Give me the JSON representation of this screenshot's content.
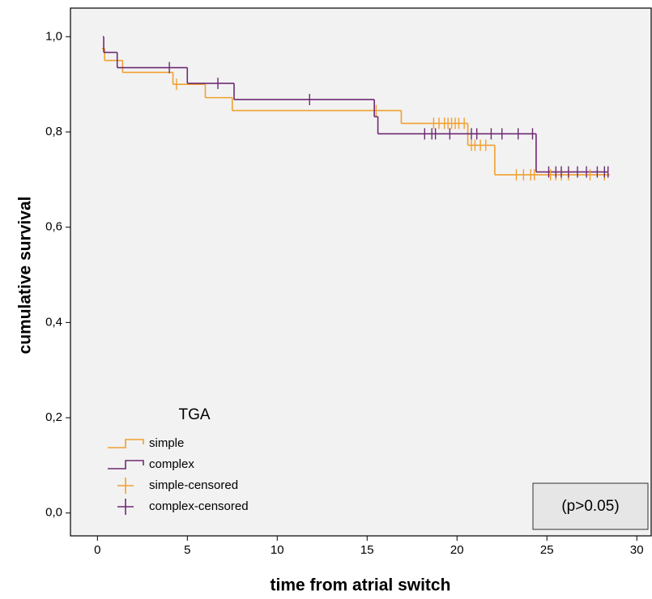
{
  "chart_data": {
    "type": "step",
    "x_label": "time from atrial switch",
    "y_label": "cumulative survival",
    "legend_title": "TGA",
    "annotation": "(p>0.05)",
    "xlim": [
      -1.5,
      30.8
    ],
    "ylim": [
      -0.048,
      1.06
    ],
    "xticks": [
      0,
      5,
      10,
      15,
      20,
      25,
      30
    ],
    "yticks": [
      {
        "value": 0,
        "label": "0,0"
      },
      {
        "value": 0.2,
        "label": "0,2"
      },
      {
        "value": 0.4,
        "label": "0,4"
      },
      {
        "value": 0.6,
        "label": "0,6"
      },
      {
        "value": 0.8,
        "label": "0,8"
      },
      {
        "value": 1,
        "label": "1,0"
      }
    ],
    "series": [
      {
        "name": "simple",
        "color": "#f0a030",
        "x": [
          0.25,
          0.4,
          1.4,
          4.2,
          6.0,
          7.5,
          16.9,
          20.6,
          22.1,
          28.5
        ],
        "values": [
          0.975,
          0.95,
          0.925,
          0.9,
          0.872,
          0.845,
          0.818,
          0.772,
          0.71,
          0.71
        ]
      },
      {
        "name": "complex",
        "color": "#6e2a73",
        "x": [
          0.3,
          0.35,
          1.1,
          5.0,
          7.6,
          15.4,
          15.6,
          24.4,
          28.4
        ],
        "values": [
          1.0,
          0.967,
          0.935,
          0.902,
          0.868,
          0.832,
          0.796,
          0.716,
          0.716
        ]
      }
    ],
    "censored": [
      {
        "name": "simple-censored",
        "color": "#f0a030",
        "x": [
          4.4,
          15.5,
          18.7,
          19.0,
          19.3,
          19.5,
          19.7,
          19.9,
          20.1,
          20.4,
          20.8,
          21.0,
          21.3,
          21.6,
          23.3,
          23.7,
          24.1,
          24.3,
          25.2,
          25.5,
          25.8,
          26.2,
          27.4,
          28.2
        ],
        "values": [
          0.9,
          0.845,
          0.818,
          0.818,
          0.818,
          0.818,
          0.818,
          0.818,
          0.818,
          0.818,
          0.772,
          0.772,
          0.772,
          0.772,
          0.71,
          0.71,
          0.71,
          0.71,
          0.71,
          0.71,
          0.71,
          0.71,
          0.71,
          0.71
        ]
      },
      {
        "name": "complex-censored",
        "color": "#6e2a73",
        "x": [
          4.0,
          6.7,
          11.8,
          18.2,
          18.6,
          18.8,
          19.6,
          20.8,
          21.1,
          21.9,
          22.5,
          23.4,
          24.2,
          25.1,
          25.5,
          25.8,
          26.2,
          26.7,
          27.2,
          27.8,
          28.2,
          28.4
        ],
        "values": [
          0.935,
          0.902,
          0.868,
          0.796,
          0.796,
          0.796,
          0.796,
          0.796,
          0.796,
          0.796,
          0.796,
          0.796,
          0.796,
          0.716,
          0.716,
          0.716,
          0.716,
          0.716,
          0.716,
          0.716,
          0.716,
          0.716
        ]
      }
    ]
  }
}
